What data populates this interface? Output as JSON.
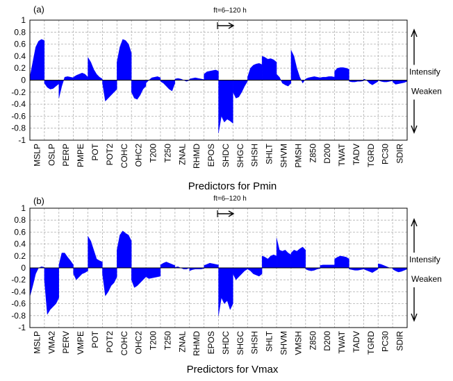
{
  "chart_data": [
    {
      "panel_label": "(a)",
      "type": "area",
      "xlabel": "Predictors for Pmin",
      "ylim": [
        -1,
        1
      ],
      "yticks": [
        "1",
        "0.8",
        "0.6",
        "0.4",
        "0.2",
        "0",
        "-0.2",
        "-0.4",
        "-0.6",
        "-0.8",
        "-1"
      ],
      "forecast_label": "ft=6–120 h",
      "annotations": {
        "up": "Intensify",
        "down": "Weaken"
      },
      "grid": true,
      "categories": [
        "MSLP",
        "OSLP",
        "PERP",
        "PMPE",
        "POT",
        "POT2",
        "COHC",
        "OHC2",
        "T200",
        "T250",
        "ZNAL",
        "RHMD",
        "EPOS",
        "SHDC",
        "SHGC",
        "SHSH",
        "SHLT",
        "SHVM",
        "PMSH",
        "Z850",
        "D200",
        "TWAT",
        "TADV",
        "TGRD",
        "PC30",
        "SDIR"
      ],
      "series": [
        {
          "values": [
            [
              0.05,
              0.3,
              0.55,
              0.65,
              0.68,
              0.66
            ],
            [
              -0.05,
              -0.12,
              -0.15,
              -0.14,
              -0.1,
              -0.06
            ],
            [
              -0.3,
              -0.1,
              0.05,
              0.06,
              0.05,
              0.04
            ],
            [
              0.05,
              0.08,
              0.1,
              0.12,
              0.1,
              0.05
            ],
            [
              0.38,
              0.3,
              0.18,
              0.1,
              0.05,
              0.02
            ],
            [
              -0.05,
              -0.35,
              -0.3,
              -0.25,
              -0.2,
              -0.15
            ],
            [
              0.3,
              0.55,
              0.68,
              0.66,
              0.6,
              0.45
            ],
            [
              -0.2,
              -0.3,
              -0.32,
              -0.25,
              -0.15,
              -0.1
            ],
            [
              -0.05,
              0.0,
              0.04,
              0.05,
              0.06,
              0.04
            ],
            [
              -0.02,
              -0.05,
              -0.1,
              -0.15,
              -0.18,
              -0.05
            ],
            [
              0.02,
              0.03,
              0.02,
              0.0,
              -0.02,
              0.0
            ],
            [
              0.02,
              0.03,
              0.04,
              0.03,
              0.02,
              0.01
            ],
            [
              0.1,
              0.14,
              0.15,
              0.16,
              0.17,
              0.15
            ],
            [
              -0.88,
              -0.6,
              -0.7,
              -0.65,
              -0.68,
              -0.72
            ],
            [
              -0.2,
              -0.3,
              -0.28,
              -0.2,
              -0.1,
              -0.02
            ],
            [
              0.05,
              0.2,
              0.25,
              0.27,
              0.28,
              0.26
            ],
            [
              0.4,
              0.38,
              0.35,
              0.36,
              0.34,
              0.3
            ],
            [
              0.1,
              0.05,
              -0.05,
              -0.08,
              -0.1,
              -0.05
            ],
            [
              0.5,
              0.4,
              0.2,
              0.05,
              -0.05,
              0.02
            ],
            [
              0.02,
              0.04,
              0.05,
              0.06,
              0.05,
              0.04
            ],
            [
              0.04,
              0.05,
              0.05,
              0.06,
              0.06,
              0.05
            ],
            [
              0.15,
              0.2,
              0.21,
              0.21,
              0.2,
              0.18
            ],
            [
              -0.02,
              -0.03,
              -0.03,
              -0.02,
              -0.02,
              -0.01
            ],
            [
              0.02,
              0.0,
              -0.05,
              -0.08,
              -0.05,
              -0.02
            ],
            [
              0.0,
              -0.02,
              -0.03,
              -0.03,
              -0.02,
              -0.01
            ],
            [
              -0.03,
              -0.07,
              -0.06,
              -0.05,
              -0.04,
              -0.02
            ]
          ]
        }
      ]
    },
    {
      "panel_label": "(b)",
      "type": "area",
      "xlabel": "Predictors for Vmax",
      "ylim": [
        -1,
        1
      ],
      "yticks": [
        "1",
        "0.8",
        "0.6",
        "0.4",
        "0.2",
        "0",
        "-0.2",
        "-0.4",
        "-0.6",
        "-0.8",
        "-1"
      ],
      "forecast_label": "ft=6–120 h",
      "annotations": {
        "up": "Intensify",
        "down": "Weaken"
      },
      "grid": true,
      "categories": [
        "MSLP",
        "VMA2",
        "PERV",
        "VMPE",
        "POT",
        "POT2",
        "COHC",
        "OHC2",
        "T200",
        "T250",
        "ZNAL",
        "RHMD",
        "EPOS",
        "SHDC",
        "SHGC",
        "SHSH",
        "SHLT",
        "SHVM",
        "VMSH",
        "Z850",
        "D200",
        "TWAT",
        "TADV",
        "TGRD",
        "PC30",
        "SDIR"
      ],
      "series": [
        {
          "values": [
            [
              -0.48,
              -0.3,
              -0.1,
              0.0,
              0.02,
              0.01
            ],
            [
              -0.2,
              -0.78,
              -0.7,
              -0.65,
              -0.6,
              -0.5
            ],
            [
              0.05,
              0.25,
              0.25,
              0.18,
              0.12,
              0.05
            ],
            [
              -0.1,
              -0.2,
              -0.15,
              -0.1,
              -0.08,
              -0.05
            ],
            [
              0.53,
              0.45,
              0.3,
              0.15,
              0.12,
              0.1
            ],
            [
              -0.1,
              -0.47,
              -0.4,
              -0.3,
              -0.25,
              -0.15
            ],
            [
              0.3,
              0.55,
              0.62,
              0.58,
              0.55,
              0.45
            ],
            [
              -0.2,
              -0.33,
              -0.3,
              -0.25,
              -0.2,
              -0.15
            ],
            [
              -0.15,
              -0.18,
              -0.17,
              -0.16,
              -0.15,
              -0.14
            ],
            [
              0.05,
              0.08,
              0.1,
              0.08,
              0.06,
              0.04
            ],
            [
              0.01,
              0.02,
              0.0,
              -0.02,
              -0.02,
              0.0
            ],
            [
              -0.05,
              -0.03,
              -0.02,
              -0.02,
              -0.02,
              -0.01
            ],
            [
              0.04,
              0.06,
              0.08,
              0.07,
              0.06,
              0.05
            ],
            [
              -0.8,
              -0.5,
              -0.6,
              -0.55,
              -0.7,
              -0.6
            ],
            [
              -0.1,
              -0.2,
              -0.15,
              -0.1,
              -0.05,
              -0.02
            ],
            [
              -0.02,
              -0.05,
              -0.1,
              -0.12,
              -0.14,
              -0.1
            ],
            [
              0.2,
              0.18,
              0.15,
              0.2,
              0.22,
              0.2
            ],
            [
              0.5,
              0.3,
              0.28,
              0.3,
              0.25,
              0.22
            ],
            [
              0.25,
              0.3,
              0.28,
              0.32,
              0.35,
              0.3
            ],
            [
              -0.02,
              -0.04,
              -0.05,
              -0.04,
              -0.02,
              -0.01
            ],
            [
              0.04,
              0.05,
              0.05,
              0.05,
              0.05,
              0.05
            ],
            [
              0.15,
              0.18,
              0.2,
              0.19,
              0.18,
              0.15
            ],
            [
              -0.02,
              -0.03,
              -0.04,
              -0.04,
              -0.03,
              -0.02
            ],
            [
              -0.02,
              -0.04,
              -0.06,
              -0.08,
              -0.05,
              -0.02
            ],
            [
              0.07,
              0.06,
              0.04,
              0.02,
              0.0,
              0.0
            ],
            [
              -0.02,
              -0.05,
              -0.07,
              -0.06,
              -0.04,
              -0.02
            ]
          ]
        }
      ]
    }
  ],
  "colors": {
    "fill": "#0000ff",
    "axis": "#000000",
    "grid": "#b0b0b0"
  }
}
